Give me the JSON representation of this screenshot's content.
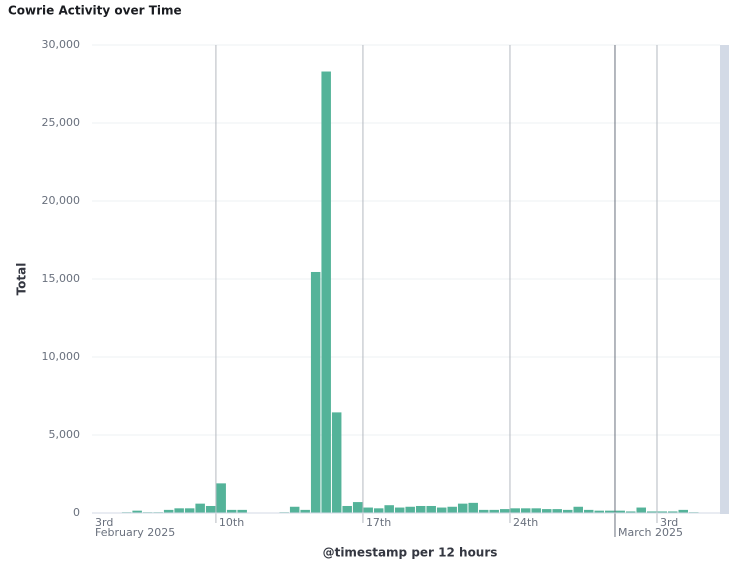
{
  "chart_data": {
    "type": "bar",
    "title": "Cowrie Activity over Time",
    "x_label": "@timestamp per 12 hours",
    "y_label": "Total",
    "color": "#54b399",
    "grid": true,
    "x": [
      5,
      6,
      7,
      8,
      9,
      10,
      11,
      12,
      13,
      14,
      15,
      16,
      17,
      18,
      19,
      20,
      21,
      22,
      23,
      24,
      25,
      26,
      27,
      28,
      29,
      30,
      31,
      32,
      33,
      34,
      35,
      36,
      37,
      38,
      39,
      40,
      41,
      42,
      43,
      44,
      45,
      46,
      47,
      48,
      49,
      50,
      51,
      52,
      53,
      54,
      55,
      56,
      57,
      58,
      59
    ],
    "values": [
      50,
      150,
      50,
      50,
      200,
      300,
      300,
      600,
      450,
      1900,
      200,
      200,
      0,
      0,
      0,
      50,
      400,
      200,
      15450,
      28300,
      6450,
      450,
      700,
      350,
      300,
      500,
      350,
      400,
      450,
      450,
      350,
      400,
      600,
      650,
      200,
      200,
      250,
      300,
      300,
      300,
      250,
      250,
      200,
      400,
      200,
      150,
      150,
      150,
      100,
      350,
      100,
      100,
      100,
      200,
      50
    ],
    "xlim": [
      2.2,
      62
    ],
    "xticks": [
      {
        "value": 0,
        "label": "3rd"
      },
      {
        "value": 14,
        "label": "10th"
      },
      {
        "value": 28,
        "label": "17th"
      },
      {
        "value": 42,
        "label": "24th"
      },
      {
        "value": 56,
        "label": "3rd"
      }
    ],
    "xgroups": [
      {
        "value": 0,
        "label": "February 2025"
      },
      {
        "value": 52,
        "label": "March 2025"
      }
    ],
    "ylim": [
      0,
      30000
    ],
    "yticks": [
      0,
      {
        "value": 5000,
        "label": "5,000"
      },
      {
        "value": 10000,
        "label": "10,000"
      },
      {
        "value": 15000,
        "label": "15,000"
      },
      {
        "value": 20000,
        "label": "20,000"
      },
      {
        "value": 25000,
        "label": "25,000"
      },
      {
        "value": 30000,
        "label": "30,000"
      }
    ]
  }
}
